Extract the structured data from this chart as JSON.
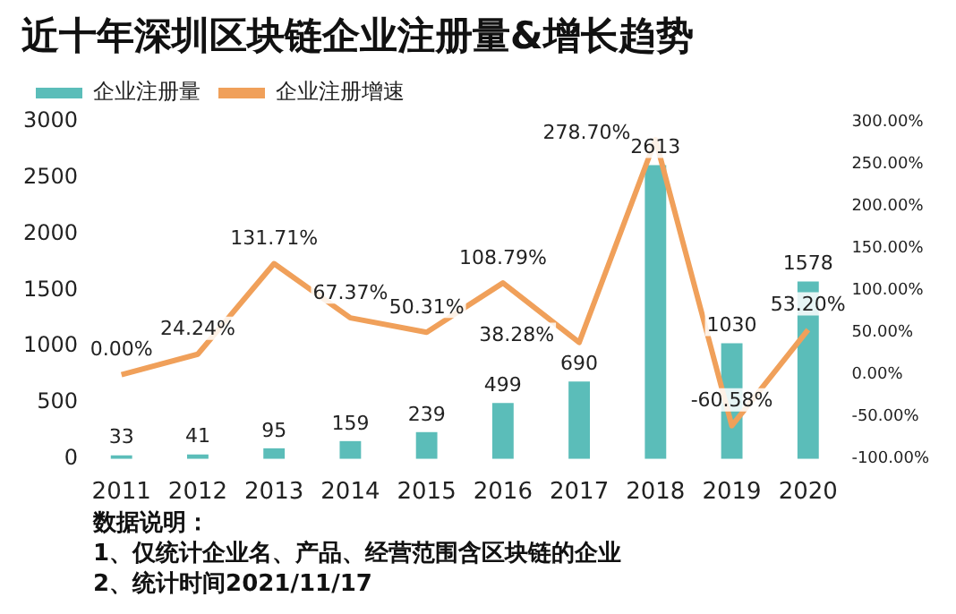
{
  "chart_data": {
    "type": "bar",
    "title": "近十年深圳区块链企业注册量&增长趋势",
    "categories": [
      "2011",
      "2012",
      "2013",
      "2014",
      "2015",
      "2016",
      "2017",
      "2018",
      "2019",
      "2020"
    ],
    "series": [
      {
        "name": "企业注册量",
        "color": "#5bbdb9",
        "values": [
          33,
          41,
          95,
          159,
          239,
          499,
          690,
          2613,
          1030,
          1578
        ],
        "value_labels": [
          "33",
          "41",
          "95",
          "159",
          "239",
          "499",
          "690",
          "2613",
          "1030",
          "1578"
        ]
      },
      {
        "name": "企业注册增速",
        "type": "line",
        "axis": "y2",
        "color": "#f0a05a",
        "values": [
          0.0,
          24.24,
          131.71,
          67.37,
          50.31,
          108.79,
          38.28,
          278.7,
          -60.58,
          53.2
        ],
        "value_labels": [
          "0.00%",
          "24.24%",
          "131.71%",
          "67.37%",
          "50.31%",
          "108.79%",
          "38.28%",
          "278.70%",
          "-60.58%",
          "53.20%"
        ]
      }
    ],
    "ylim": [
      0,
      3000
    ],
    "yticks": [
      0,
      500,
      1000,
      1500,
      2000,
      2500,
      3000
    ],
    "y2lim": [
      -100,
      300
    ],
    "y2ticks": [
      {
        "value": -100,
        "label": "-100.00%"
      },
      {
        "value": -50,
        "label": "-50.00%"
      },
      {
        "value": 0,
        "label": "0.00%"
      },
      {
        "value": 50,
        "label": "50.00%"
      },
      {
        "value": 100,
        "label": "100.00%"
      },
      {
        "value": 150,
        "label": "150.00%"
      },
      {
        "value": 200,
        "label": "200.00%"
      },
      {
        "value": 250,
        "label": "250.00%"
      },
      {
        "value": 300,
        "label": "300.00%"
      }
    ],
    "grid": false,
    "legend": "top left",
    "marker": "none",
    "line_style": "solid",
    "annotations": [
      "数据说明：",
      "1、仅统计企业名、产品、经营范围含区块链的企业",
      "2、统计时间2021/11/17"
    ]
  }
}
